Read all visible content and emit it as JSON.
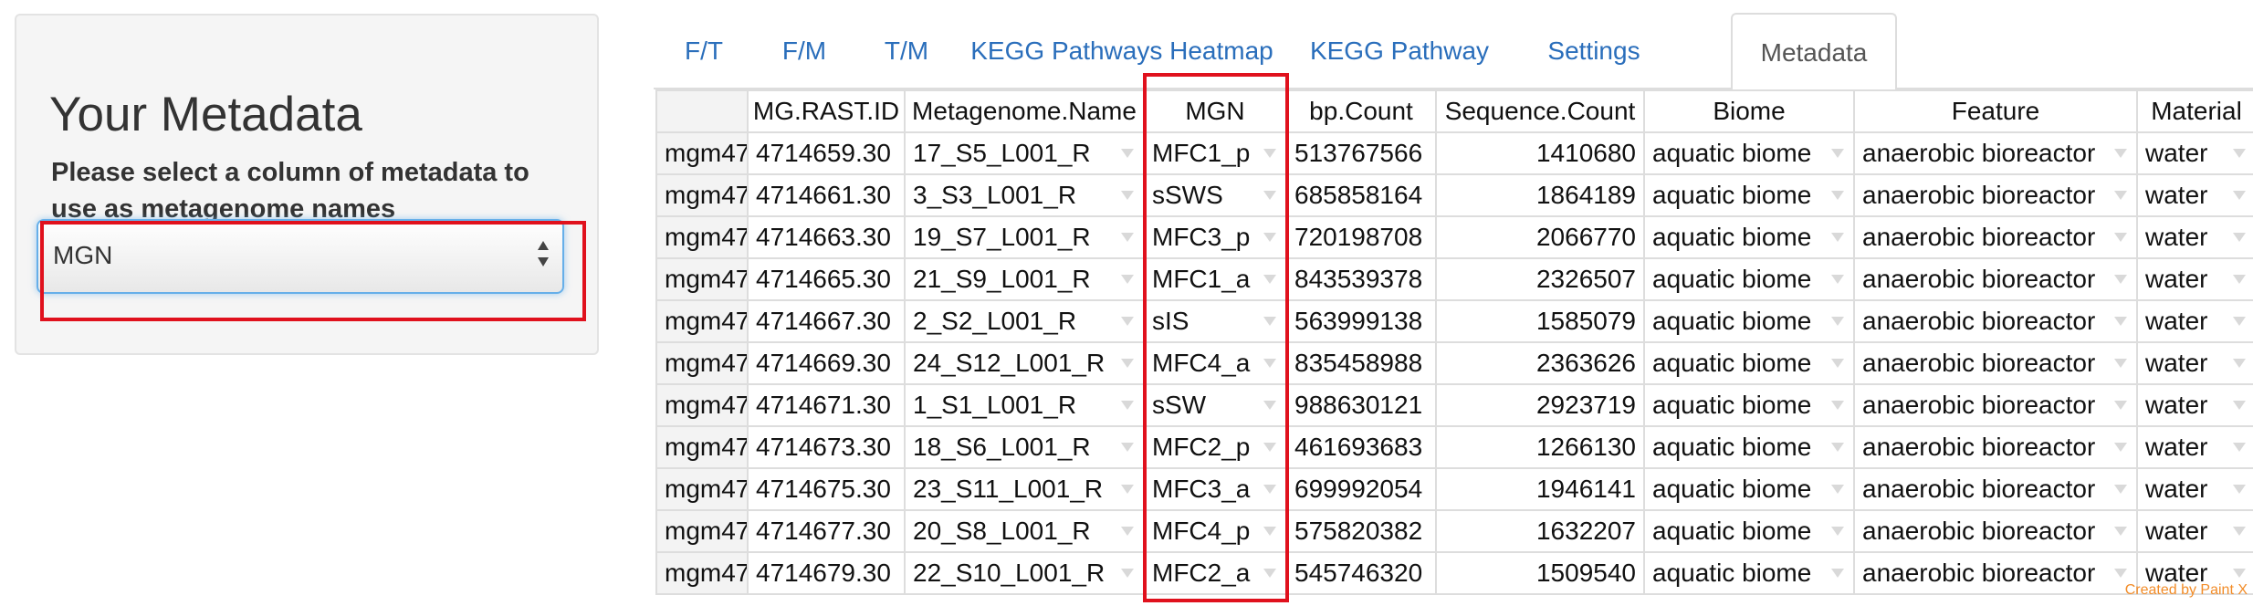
{
  "sidebar": {
    "title": "Your Metadata",
    "select_label": "Please select a column of metadata to use as metagenome names",
    "select_value": "MGN"
  },
  "tabs": [
    {
      "label": "F/T",
      "active": false
    },
    {
      "label": "F/M",
      "active": false
    },
    {
      "label": "T/M",
      "active": false
    },
    {
      "label": "KEGG Pathways Heatmap",
      "active": false
    },
    {
      "label": "KEGG Pathway",
      "active": false
    },
    {
      "label": "Settings",
      "active": false
    },
    {
      "label": "Metadata",
      "active": true
    }
  ],
  "table": {
    "headers": [
      "",
      "MG.RAST.ID",
      "Metagenome.Name",
      "MGN",
      "bp.Count",
      "Sequence.Count",
      "Biome",
      "Feature",
      "Material"
    ],
    "rows": [
      [
        "mgm47",
        "4714659.30",
        "17_S5_L001_R",
        "MFC1_p",
        "513767566",
        "1410680",
        "aquatic biome",
        "anaerobic bioreactor",
        "water"
      ],
      [
        "mgm47",
        "4714661.30",
        "3_S3_L001_R",
        "sSWS",
        "685858164",
        "1864189",
        "aquatic biome",
        "anaerobic bioreactor",
        "water"
      ],
      [
        "mgm47",
        "4714663.30",
        "19_S7_L001_R",
        "MFC3_p",
        "720198708",
        "2066770",
        "aquatic biome",
        "anaerobic bioreactor",
        "water"
      ],
      [
        "mgm47",
        "4714665.30",
        "21_S9_L001_R",
        "MFC1_a",
        "843539378",
        "2326507",
        "aquatic biome",
        "anaerobic bioreactor",
        "water"
      ],
      [
        "mgm47",
        "4714667.30",
        "2_S2_L001_R",
        "sIS",
        "563999138",
        "1585079",
        "aquatic biome",
        "anaerobic bioreactor",
        "water"
      ],
      [
        "mgm47",
        "4714669.30",
        "24_S12_L001_R",
        "MFC4_a",
        "835458988",
        "2363626",
        "aquatic biome",
        "anaerobic bioreactor",
        "water"
      ],
      [
        "mgm47",
        "4714671.30",
        "1_S1_L001_R",
        "sSW",
        "988630121",
        "2923719",
        "aquatic biome",
        "anaerobic bioreactor",
        "water"
      ],
      [
        "mgm47",
        "4714673.30",
        "18_S6_L001_R",
        "MFC2_p",
        "461693683",
        "1266130",
        "aquatic biome",
        "anaerobic bioreactor",
        "water"
      ],
      [
        "mgm47",
        "4714675.30",
        "23_S11_L001_R",
        "MFC3_a",
        "699992054",
        "1946141",
        "aquatic biome",
        "anaerobic bioreactor",
        "water"
      ],
      [
        "mgm47",
        "4714677.30",
        "20_S8_L001_R",
        "MFC4_p",
        "575820382",
        "1632207",
        "aquatic biome",
        "anaerobic bioreactor",
        "water"
      ],
      [
        "mgm47",
        "4714679.30",
        "22_S10_L001_R",
        "MFC2_a",
        "545746320",
        "1509540",
        "aquatic biome",
        "anaerobic bioreactor",
        "water"
      ]
    ]
  },
  "annotation_color": "#e0111d",
  "accent_color": "#2a6ebb",
  "watermark": "Created by Paint X"
}
